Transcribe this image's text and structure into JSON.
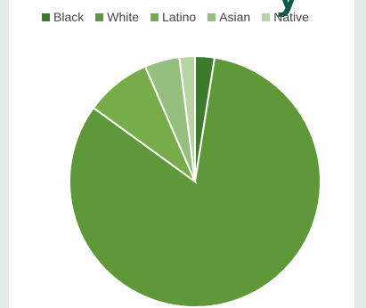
{
  "title_fragment": "y",
  "chart_data": {
    "type": "pie",
    "title": "",
    "legend_position": "top",
    "start_angle_deg": 0,
    "direction": "clockwise",
    "series": [
      {
        "name": "Black",
        "value": 2.5,
        "color": "#3d7a2c"
      },
      {
        "name": "White",
        "value": 82.5,
        "color": "#5e9838"
      },
      {
        "name": "Latino",
        "value": 8.5,
        "color": "#76ad48"
      },
      {
        "name": "Asian",
        "value": 4.5,
        "color": "#94bf7e"
      },
      {
        "name": "Native",
        "value": 2.0,
        "color": "#b9d4a4"
      }
    ]
  }
}
